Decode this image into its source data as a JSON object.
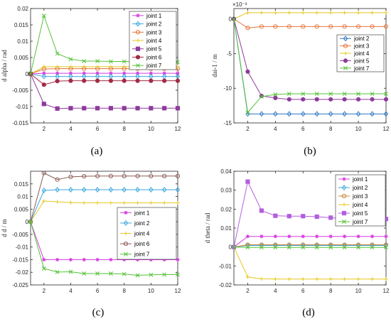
{
  "chart_data": [
    {
      "id": "a",
      "caption": "(a)",
      "type": "line",
      "ylabel": "d alpha / rad",
      "xlabel": "",
      "xlim": [
        1,
        12
      ],
      "ylim": [
        -0.015,
        0.02
      ],
      "xticks": [
        2,
        4,
        6,
        8,
        10,
        12
      ],
      "xtick_labels": [
        "2",
        "4",
        "6",
        "8",
        "10",
        "12"
      ],
      "yticks": [
        -0.015,
        -0.01,
        -0.005,
        0,
        0.005,
        0.01,
        0.015,
        0.02
      ],
      "ytick_labels": [
        "-0.015",
        "-0.01",
        "-0.005",
        "0",
        "0.005",
        "0.01",
        "0.015",
        "0.02"
      ],
      "y_exponent": "",
      "legend_position": "top-right",
      "grid": false,
      "x": [
        1,
        2,
        3,
        4,
        5,
        6,
        7,
        8,
        9,
        10,
        11,
        12
      ],
      "series": [
        {
          "name": "joint 1",
          "color": "#d63be0",
          "marker": "star",
          "values": [
            0,
            0.0002,
            0.0002,
            0.0002,
            0.0002,
            0.0002,
            0.0002,
            0.0002,
            0.0002,
            0.0002,
            0.0002,
            0.0002
          ]
        },
        {
          "name": "joint 2",
          "color": "#3da7de",
          "marker": "diamond",
          "values": [
            0,
            -0.0008,
            -0.0008,
            -0.0008,
            -0.0008,
            -0.0008,
            -0.0008,
            -0.0008,
            -0.0008,
            -0.0008,
            -0.0008,
            -0.0008
          ]
        },
        {
          "name": "joint 3",
          "color": "#e8743b",
          "marker": "circle",
          "values": [
            0,
            0.0015,
            0.0016,
            0.0016,
            0.0016,
            0.0016,
            0.0016,
            0.0016,
            0.0016,
            0.0016,
            0.0016,
            0.0016
          ]
        },
        {
          "name": "joint 4",
          "color": "#e5c71e",
          "marker": "plus",
          "values": [
            0,
            0.0022,
            0.0022,
            0.0022,
            0.0022,
            0.0022,
            0.0022,
            0.0022,
            0.0022,
            0.0022,
            0.0022,
            0.0022
          ]
        },
        {
          "name": "joint 5",
          "color": "#8e3b9c",
          "marker": "square",
          "values": [
            0,
            -0.0092,
            -0.0106,
            -0.0105,
            -0.0105,
            -0.0105,
            -0.0105,
            -0.0105,
            -0.0105,
            -0.0105,
            -0.0105,
            -0.0105
          ]
        },
        {
          "name": "joint 6",
          "color": "#a12a45",
          "marker": "dot",
          "values": [
            0,
            -0.0033,
            -0.0022,
            -0.0021,
            -0.0021,
            -0.0021,
            -0.0021,
            -0.0021,
            -0.0021,
            -0.0021,
            -0.0021,
            -0.0021
          ]
        },
        {
          "name": "joint 7",
          "color": "#55c139",
          "marker": "x",
          "values": [
            0,
            0.0178,
            0.0062,
            0.0045,
            0.0039,
            0.0039,
            0.0038,
            0.0038,
            0.0037,
            0.0038,
            0.0037,
            0.0036
          ]
        }
      ]
    },
    {
      "id": "b",
      "caption": "(b)",
      "type": "line",
      "ylabel": "dai-1 / m",
      "xlabel": "",
      "xlim": [
        1,
        12
      ],
      "ylim": [
        -15,
        1.5
      ],
      "xticks": [
        2,
        4,
        6,
        8,
        10,
        12
      ],
      "xtick_labels": [
        "2",
        "4",
        "6",
        "8",
        "10",
        "12"
      ],
      "yticks": [
        -15,
        -10,
        -5,
        0
      ],
      "ytick_labels": [
        "-15",
        "-10",
        "-5",
        "0"
      ],
      "y_exponent": "×10⁻³",
      "legend_position": "right",
      "grid": false,
      "x": [
        1,
        2,
        3,
        4,
        5,
        6,
        7,
        8,
        9,
        10,
        11,
        12
      ],
      "series": [
        {
          "name": "joint 2",
          "color": "#2f77c2",
          "marker": "diamond",
          "values": [
            0,
            -13.7,
            -13.7,
            -13.7,
            -13.7,
            -13.7,
            -13.7,
            -13.7,
            -13.7,
            -13.7,
            -13.7,
            -13.7
          ]
        },
        {
          "name": "joint 3",
          "color": "#e8743b",
          "marker": "circle",
          "values": [
            0,
            -1.3,
            -1.1,
            -1.1,
            -1.1,
            -1.1,
            -1.1,
            -1.1,
            -1.1,
            -1.1,
            -1.1,
            -1.1
          ]
        },
        {
          "name": "joint 4",
          "color": "#e5c71e",
          "marker": "plus",
          "values": [
            0,
            0.9,
            0.9,
            0.9,
            0.9,
            0.9,
            0.9,
            0.9,
            0.9,
            0.9,
            0.9,
            0.9
          ]
        },
        {
          "name": "joint 5",
          "color": "#8e3b9c",
          "marker": "dot",
          "values": [
            0,
            -7.6,
            -11.1,
            -11.4,
            -11.6,
            -11.6,
            -11.6,
            -11.6,
            -11.6,
            -11.6,
            -11.6,
            -11.6
          ]
        },
        {
          "name": "joint 7",
          "color": "#55c139",
          "marker": "x",
          "values": [
            0,
            -13.5,
            -11.2,
            -10.9,
            -10.8,
            -10.8,
            -10.8,
            -10.8,
            -10.8,
            -10.8,
            -10.8,
            -10.8
          ]
        }
      ]
    },
    {
      "id": "c",
      "caption": "(c)",
      "type": "line",
      "ylabel": "d d / m",
      "xlabel": "",
      "xlim": [
        1,
        12
      ],
      "ylim": [
        -0.025,
        0.02
      ],
      "xticks": [
        2,
        4,
        6,
        8,
        10,
        12
      ],
      "xtick_labels": [
        "2",
        "4",
        "6",
        "8",
        "10",
        "12"
      ],
      "yticks": [
        -0.025,
        -0.02,
        -0.015,
        -0.01,
        -0.005,
        0,
        0.005,
        0.01,
        0.015
      ],
      "ytick_labels": [
        "-0.025",
        "-0.02",
        "-0.015",
        "-0.01",
        "-0.005",
        "0",
        "0.005",
        "0.01",
        "0.015"
      ],
      "y_exponent": "",
      "legend_position": "bottom-right",
      "grid": false,
      "x": [
        1,
        2,
        3,
        4,
        5,
        6,
        7,
        8,
        9,
        10,
        11,
        12
      ],
      "series": [
        {
          "name": "joint 1",
          "color": "#d63be0",
          "marker": "star",
          "values": [
            0,
            -0.015,
            -0.015,
            -0.015,
            -0.015,
            -0.015,
            -0.015,
            -0.015,
            -0.015,
            -0.015,
            -0.015,
            -0.015
          ]
        },
        {
          "name": "joint 2",
          "color": "#3da7de",
          "marker": "diamond",
          "values": [
            0,
            0.0124,
            0.0127,
            0.0127,
            0.0127,
            0.0127,
            0.0127,
            0.0127,
            0.0127,
            0.0127,
            0.0127,
            0.0127
          ]
        },
        {
          "name": "joint 4",
          "color": "#e5c71e",
          "marker": "plus",
          "values": [
            0,
            0.0082,
            0.0079,
            0.0076,
            0.0075,
            0.0075,
            0.0075,
            0.0075,
            0.0075,
            0.0075,
            0.0075,
            0.0075
          ]
        },
        {
          "name": "joint 6",
          "color": "#8b5e55",
          "marker": "circle",
          "values": [
            0,
            0.0193,
            0.0167,
            0.0178,
            0.018,
            0.0181,
            0.0181,
            0.0181,
            0.0181,
            0.0181,
            0.0181,
            0.0181
          ]
        },
        {
          "name": "joint 7",
          "color": "#55c139",
          "marker": "x",
          "values": [
            0,
            -0.0185,
            -0.0199,
            -0.0198,
            -0.0205,
            -0.0205,
            -0.0205,
            -0.0207,
            -0.0212,
            -0.021,
            -0.0209,
            -0.0209
          ]
        }
      ]
    },
    {
      "id": "d",
      "caption": "(d)",
      "type": "line",
      "ylabel": "d theta / rad",
      "xlabel": "",
      "xlim": [
        1,
        12
      ],
      "ylim": [
        -0.02,
        0.04
      ],
      "xticks": [
        2,
        4,
        6,
        8,
        10,
        12
      ],
      "xtick_labels": [
        "2",
        "4",
        "6",
        "8",
        "10",
        "12"
      ],
      "yticks": [
        -0.02,
        -0.01,
        0,
        0.01,
        0.02,
        0.03,
        0.04
      ],
      "ytick_labels": [
        "-0.02",
        "-0.01",
        "0",
        "0.01",
        "0.02",
        "0.03",
        "0.04"
      ],
      "y_exponent": "",
      "legend_position": "top-right",
      "grid": false,
      "x": [
        1,
        2,
        3,
        4,
        5,
        6,
        7,
        8,
        9,
        10,
        11,
        12
      ],
      "series": [
        {
          "name": "joint 1",
          "color": "#d63be0",
          "marker": "star",
          "values": [
            0,
            0.0056,
            0.0056,
            0.0056,
            0.0056,
            0.0056,
            0.0056,
            0.0056,
            0.0056,
            0.0056,
            0.0056,
            0.0056
          ]
        },
        {
          "name": "joint 2",
          "color": "#3da7de",
          "marker": "diamond",
          "values": [
            0,
            0.0008,
            0.0008,
            0.0008,
            0.0008,
            0.0008,
            0.0008,
            0.0008,
            0.0008,
            0.0008,
            0.0008,
            0.0008
          ]
        },
        {
          "name": "joint 3",
          "color": "#c8873d",
          "marker": "circle",
          "values": [
            0,
            0.0012,
            0.0012,
            0.0012,
            0.0012,
            0.0012,
            0.0012,
            0.0012,
            0.0012,
            0.0012,
            0.0012,
            0.0012
          ]
        },
        {
          "name": "joint 4",
          "color": "#e5c71e",
          "marker": "plus",
          "values": [
            0,
            -0.0158,
            -0.0168,
            -0.0169,
            -0.0169,
            -0.0169,
            -0.0169,
            -0.0169,
            -0.0169,
            -0.0169,
            -0.0169,
            -0.0169
          ]
        },
        {
          "name": "joint 5",
          "color": "#b35ee0",
          "marker": "square",
          "values": [
            0,
            0.0345,
            0.0192,
            0.0165,
            0.0163,
            0.0163,
            0.016,
            0.0155,
            0.015,
            0.0152,
            0.0148,
            0.0148
          ]
        },
        {
          "name": "joint 7",
          "color": "#55c139",
          "marker": "x",
          "values": [
            0,
            -0.0002,
            -0.0002,
            -0.0002,
            -0.0002,
            -0.0002,
            -0.0002,
            -0.0002,
            -0.0002,
            -0.0002,
            -0.0002,
            -0.0002
          ]
        }
      ]
    }
  ]
}
